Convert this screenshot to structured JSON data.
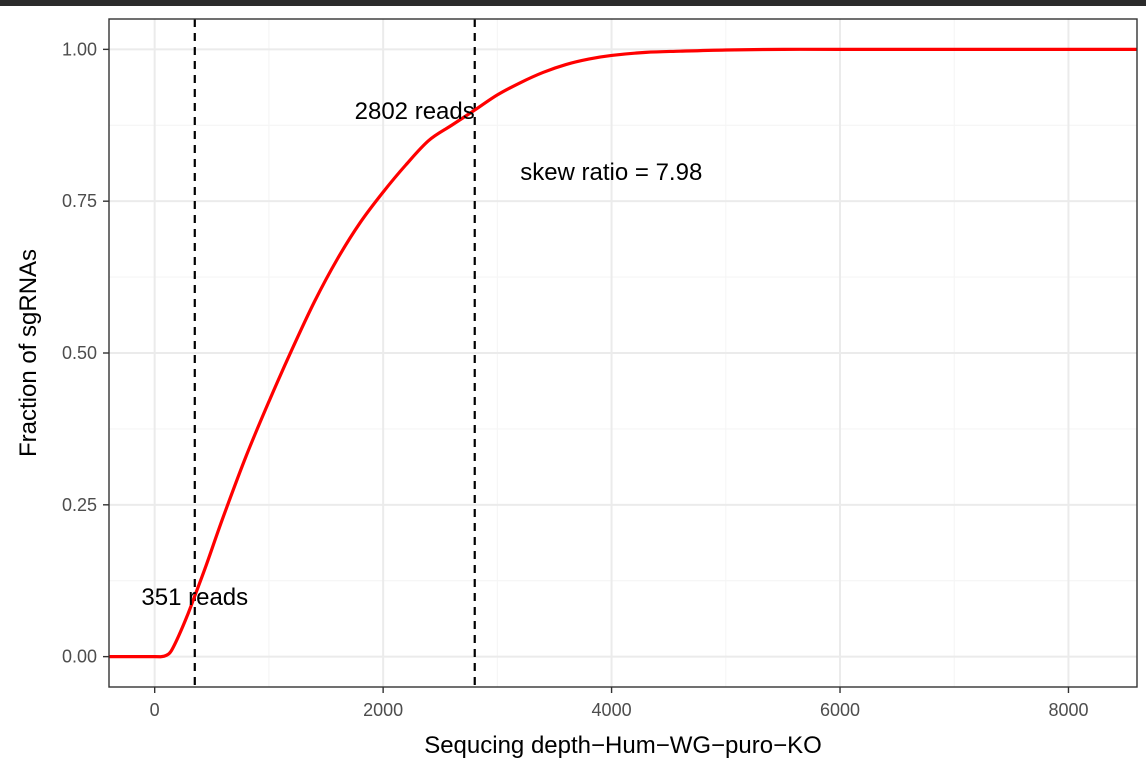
{
  "chart_data": {
    "type": "line",
    "xlabel": "Sequcing depth−Hum−WG−puro−KO",
    "ylabel": "Fraction of sgRNAs",
    "xlim": [
      -400,
      8600
    ],
    "ylim": [
      -0.05,
      1.05
    ],
    "x_ticks": [
      0,
      2000,
      4000,
      6000,
      8000
    ],
    "x_tick_labels": [
      "0",
      "2000",
      "4000",
      "6000",
      "8000"
    ],
    "y_ticks": [
      0,
      0.25,
      0.5,
      0.75,
      1.0
    ],
    "y_tick_labels": [
      "0.00",
      "0.25",
      "0.50",
      "0.75",
      "1.00"
    ],
    "grid": true,
    "series": [
      {
        "color": "#ff0000",
        "x": [
          -400,
          0,
          60,
          100,
          140,
          200,
          280,
          351,
          450,
          600,
          800,
          1000,
          1200,
          1400,
          1600,
          1800,
          2000,
          2200,
          2400,
          2600,
          2802,
          3000,
          3200,
          3400,
          3600,
          3800,
          4000,
          4300,
          4600,
          5000,
          5500,
          6000,
          7000,
          8000,
          8600
        ],
        "y": [
          0.0,
          0.0,
          0.0,
          0.002,
          0.008,
          0.03,
          0.065,
          0.1,
          0.15,
          0.23,
          0.33,
          0.42,
          0.505,
          0.585,
          0.655,
          0.715,
          0.765,
          0.81,
          0.85,
          0.875,
          0.9,
          0.925,
          0.945,
          0.962,
          0.975,
          0.984,
          0.99,
          0.995,
          0.997,
          0.999,
          1.0,
          1.0,
          1.0,
          1.0,
          1.0
        ]
      }
    ],
    "vlines": [
      351,
      2802
    ],
    "annotations": [
      {
        "text": "2802 reads",
        "x": 2802,
        "y": 0.9,
        "anchor": "end"
      },
      {
        "text": "351 reads",
        "x": 351,
        "y": 0.1,
        "anchor": "middle"
      },
      {
        "text": "skew ratio = 7.98",
        "x": 3200,
        "y": 0.8,
        "anchor": "start"
      }
    ]
  },
  "colors": {
    "line": "#ff0000",
    "panel_border": "#333333",
    "grid_major": "#ebebeb",
    "grid_minor": "#f5f5f5",
    "top_bar": "#2b2b2b"
  }
}
